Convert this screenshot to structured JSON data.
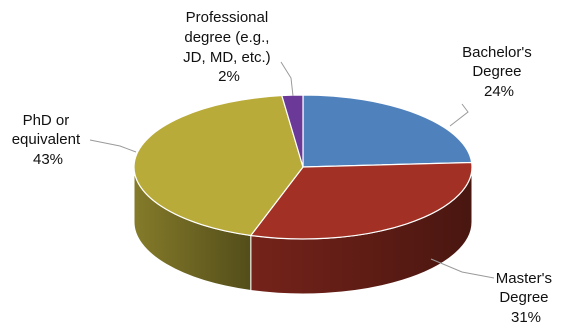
{
  "chart_data": {
    "type": "pie",
    "style": "3d",
    "title": "",
    "legend": "none",
    "slices": [
      {
        "label_lines": [
          "Bachelor's",
          "Degree"
        ],
        "value": 24,
        "value_label": "24%",
        "color": "#4f81bd"
      },
      {
        "label_lines": [
          "Master's",
          "Degree"
        ],
        "value": 31,
        "value_label": "31%",
        "color": "#a23024"
      },
      {
        "label_lines": [
          "PhD or",
          "equivalent"
        ],
        "value": 43,
        "value_label": "43%",
        "color": "#b9ab3a"
      },
      {
        "label_lines": [
          "Professional",
          "degree (e.g.,",
          "JD, MD, etc.)"
        ],
        "value": 2,
        "value_label": "2%",
        "color": "#6b3a99"
      }
    ]
  }
}
